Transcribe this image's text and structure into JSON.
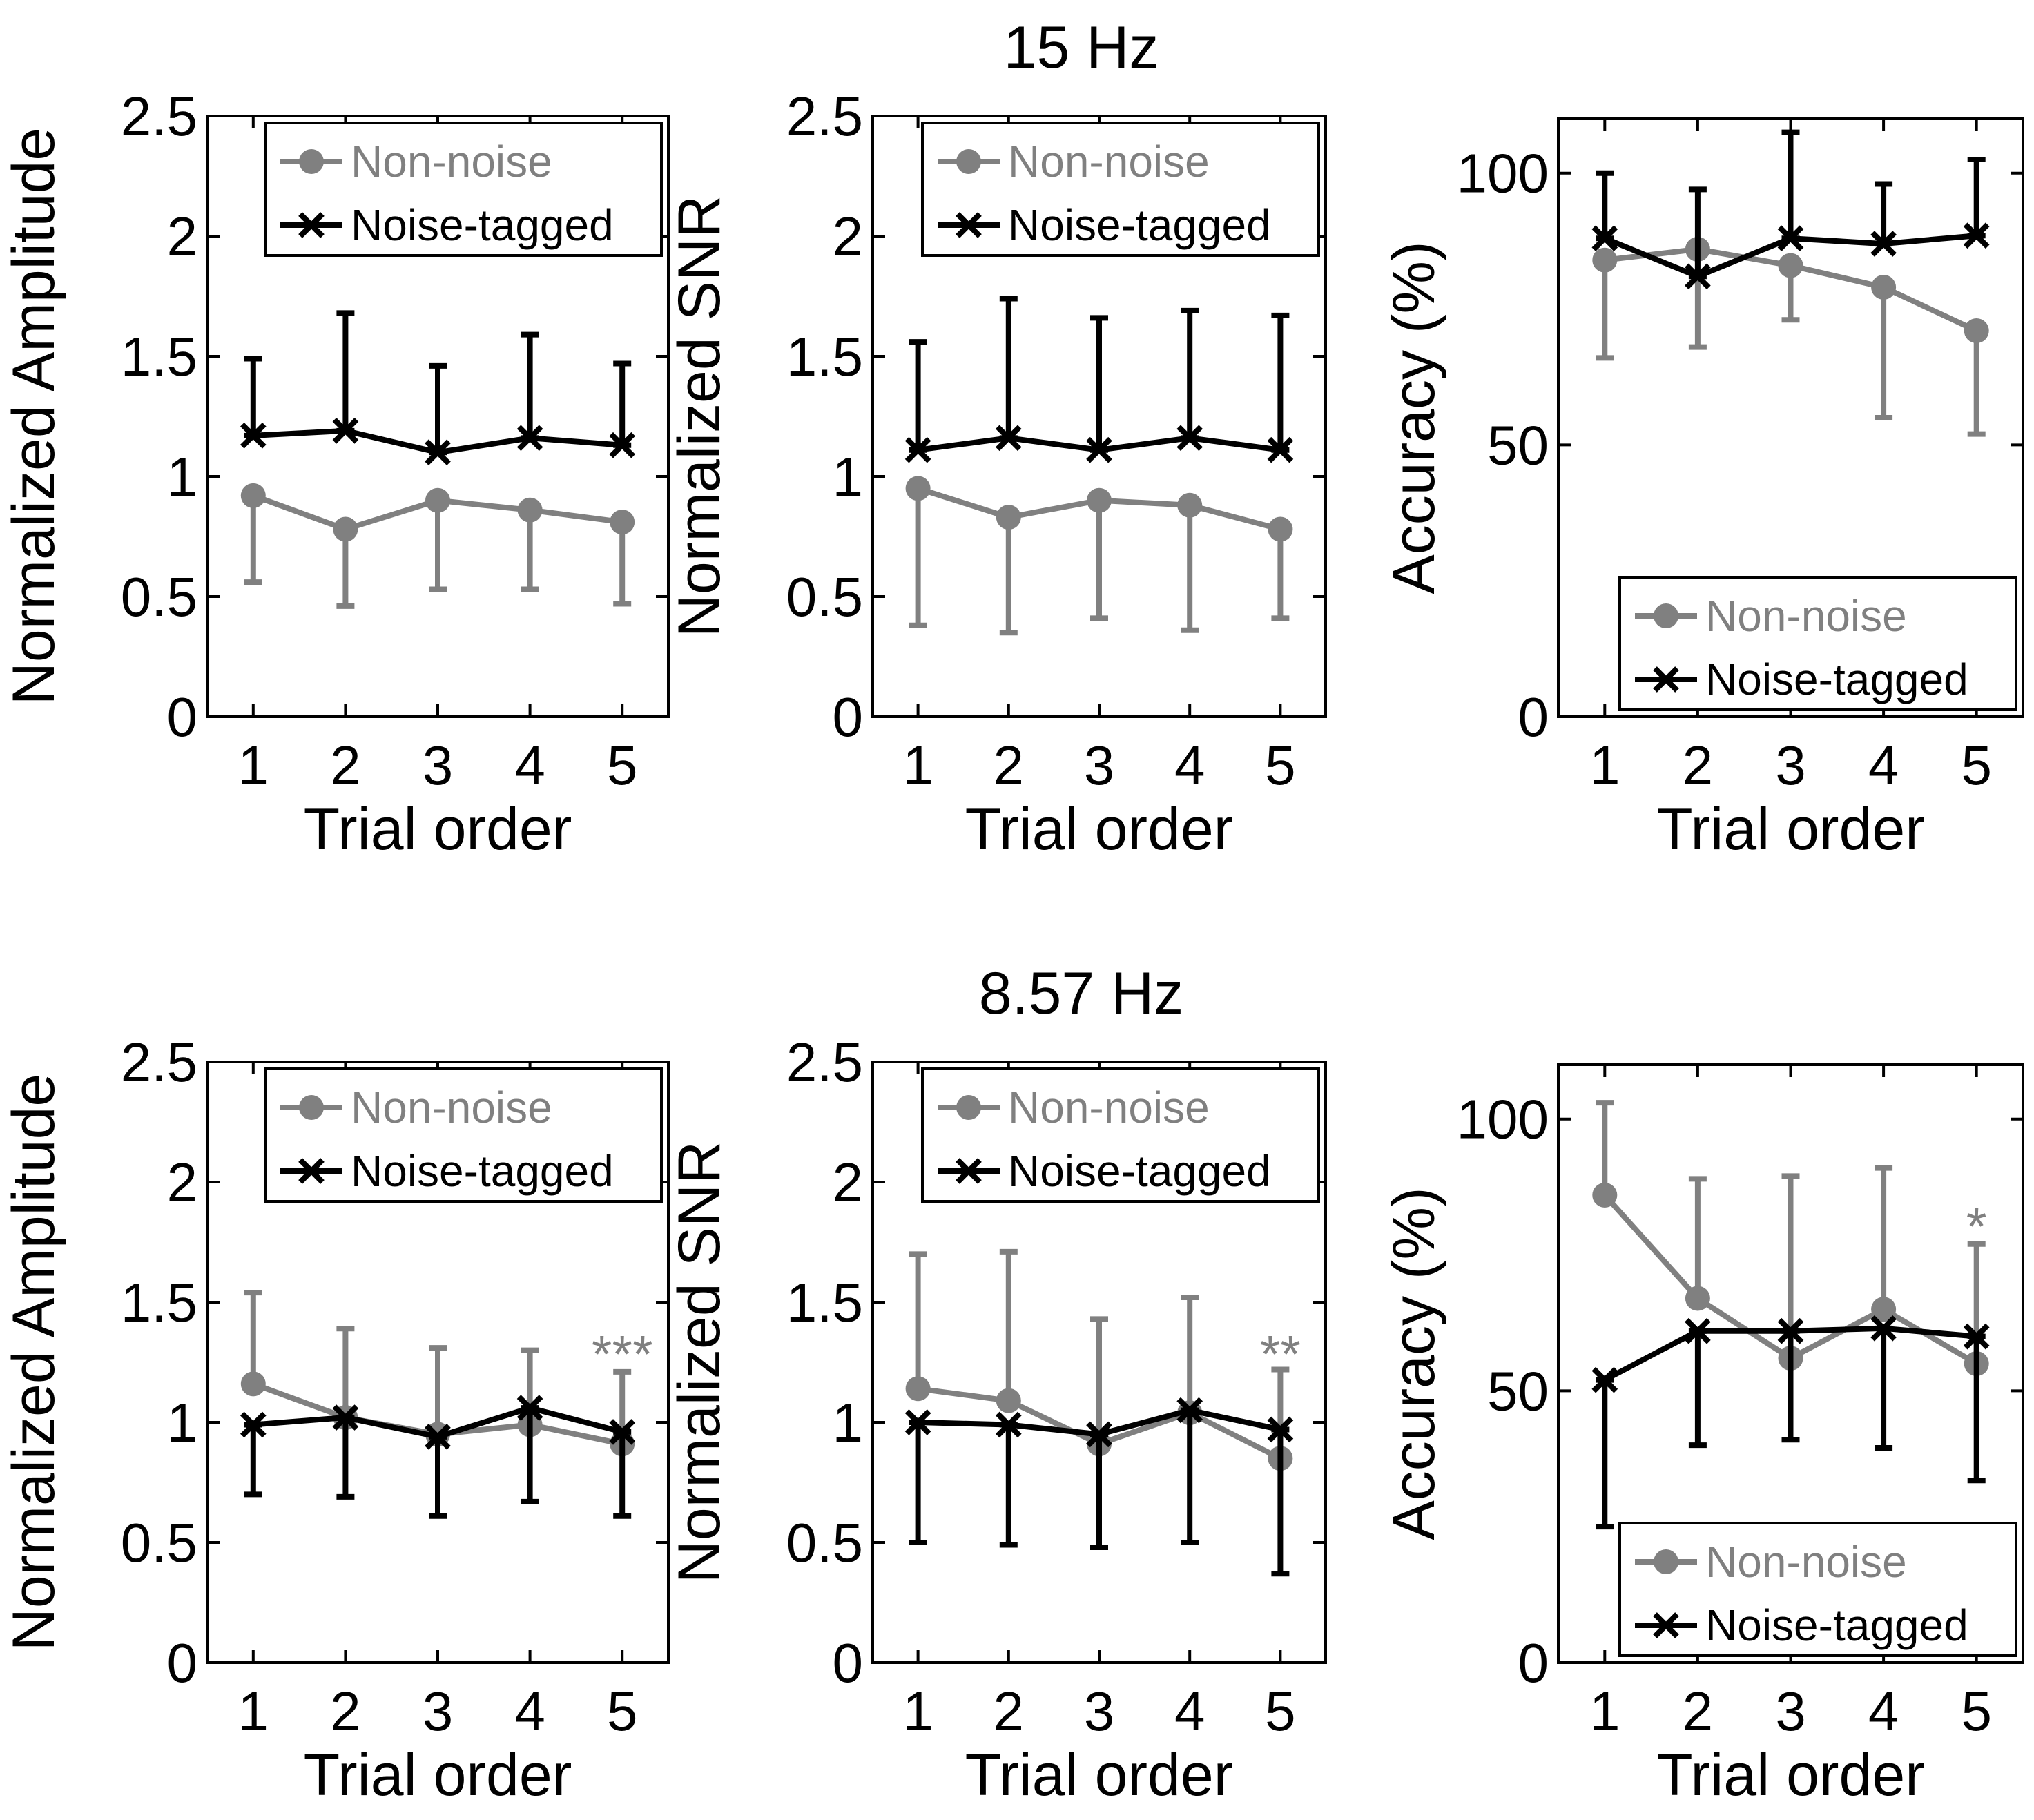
{
  "colors": {
    "non_noise": "#808080",
    "noise_tagged": "#000000",
    "axis": "#000000",
    "background": "#ffffff"
  },
  "row_titles": [
    "15 Hz",
    "8.57 Hz"
  ],
  "chart_data": [
    {
      "type": "line",
      "id": "amp-15",
      "row_title": "15 Hz",
      "xlabel": "Trial order",
      "ylabel": "Normalized Amplitude",
      "x": [
        1,
        2,
        3,
        4,
        5
      ],
      "xlim": [
        0.5,
        5.5
      ],
      "ylim": [
        0,
        2.5
      ],
      "yticks": [
        0,
        0.5,
        1,
        1.5,
        2,
        2.5
      ],
      "ytick_labels": [
        "0",
        "0.5",
        "1",
        "1.5",
        "2",
        "2.5"
      ],
      "legend": "top-right",
      "series": [
        {
          "name": "Non-noise",
          "marker": "circle",
          "color": "#808080",
          "values": [
            0.92,
            0.78,
            0.9,
            0.86,
            0.81
          ],
          "err_low": [
            0.56,
            0.46,
            0.53,
            0.53,
            0.47
          ],
          "err_high": [
            0.92,
            0.78,
            0.9,
            0.86,
            0.81
          ]
        },
        {
          "name": "Noise-tagged",
          "marker": "x",
          "color": "#000000",
          "values": [
            1.17,
            1.19,
            1.1,
            1.16,
            1.13
          ],
          "err_low": [
            1.17,
            1.19,
            1.1,
            1.16,
            1.13
          ],
          "err_high": [
            1.49,
            1.68,
            1.46,
            1.59,
            1.47
          ]
        }
      ],
      "annotations": []
    },
    {
      "type": "line",
      "id": "snr-15",
      "xlabel": "Trial order",
      "ylabel": "Normalized SNR",
      "x": [
        1,
        2,
        3,
        4,
        5
      ],
      "xlim": [
        0.5,
        5.5
      ],
      "ylim": [
        0,
        2.5
      ],
      "yticks": [
        0,
        0.5,
        1,
        1.5,
        2,
        2.5
      ],
      "ytick_labels": [
        "0",
        "0.5",
        "1",
        "1.5",
        "2",
        "2.5"
      ],
      "legend": "top-right",
      "series": [
        {
          "name": "Non-noise",
          "marker": "circle",
          "color": "#808080",
          "values": [
            0.95,
            0.83,
            0.9,
            0.88,
            0.78
          ],
          "err_low": [
            0.38,
            0.35,
            0.41,
            0.36,
            0.41
          ],
          "err_high": [
            0.95,
            0.83,
            0.9,
            0.88,
            0.78
          ]
        },
        {
          "name": "Noise-tagged",
          "marker": "x",
          "color": "#000000",
          "values": [
            1.11,
            1.16,
            1.11,
            1.16,
            1.11
          ],
          "err_low": [
            1.11,
            1.16,
            1.11,
            1.16,
            1.11
          ],
          "err_high": [
            1.56,
            1.74,
            1.66,
            1.69,
            1.67
          ]
        }
      ],
      "annotations": []
    },
    {
      "type": "line",
      "id": "acc-15",
      "xlabel": "Trial order",
      "ylabel": "Accuracy (%)",
      "x": [
        1,
        2,
        3,
        4,
        5
      ],
      "xlim": [
        0.5,
        5.5
      ],
      "ylim": [
        0,
        110
      ],
      "yticks": [
        0,
        50,
        100
      ],
      "ytick_labels": [
        "0",
        "50",
        "100"
      ],
      "legend": "bottom-right",
      "series": [
        {
          "name": "Non-noise",
          "marker": "circle",
          "color": "#808080",
          "values": [
            84,
            86,
            83,
            79,
            71
          ],
          "err_low": [
            66,
            68,
            73,
            55,
            52
          ],
          "err_high": [
            84,
            86,
            83,
            79,
            71
          ]
        },
        {
          "name": "Noise-tagged",
          "marker": "x",
          "color": "#000000",
          "values": [
            88,
            81,
            88,
            87,
            88.5
          ],
          "err_low": [
            88,
            81,
            88,
            87,
            88.5
          ],
          "err_high": [
            100,
            97,
            107.5,
            98,
            102.5
          ]
        }
      ],
      "annotations": []
    },
    {
      "type": "line",
      "id": "amp-857",
      "row_title": "8.57 Hz",
      "xlabel": "Trial order",
      "ylabel": "Normalized Amplitude",
      "x": [
        1,
        2,
        3,
        4,
        5
      ],
      "xlim": [
        0.5,
        5.5
      ],
      "ylim": [
        0,
        2.5
      ],
      "yticks": [
        0,
        0.5,
        1,
        1.5,
        2,
        2.5
      ],
      "ytick_labels": [
        "0",
        "0.5",
        "1",
        "1.5",
        "2",
        "2.5"
      ],
      "legend": "top-right",
      "series": [
        {
          "name": "Non-noise",
          "marker": "circle",
          "color": "#808080",
          "values": [
            1.16,
            1.02,
            0.95,
            0.99,
            0.91
          ],
          "err_low": [
            1.16,
            1.02,
            0.95,
            0.99,
            0.91
          ],
          "err_high": [
            1.54,
            1.39,
            1.31,
            1.3,
            1.21
          ]
        },
        {
          "name": "Noise-tagged",
          "marker": "x",
          "color": "#000000",
          "values": [
            0.99,
            1.02,
            0.94,
            1.06,
            0.96
          ],
          "err_low": [
            0.7,
            0.69,
            0.61,
            0.67,
            0.61
          ],
          "err_high": [
            0.99,
            1.02,
            0.94,
            1.06,
            0.96
          ]
        }
      ],
      "annotations": [
        {
          "text": "***",
          "x": 5,
          "y": 1.3,
          "color": "#808080"
        }
      ]
    },
    {
      "type": "line",
      "id": "snr-857",
      "xlabel": "Trial order",
      "ylabel": "Normalized SNR",
      "x": [
        1,
        2,
        3,
        4,
        5
      ],
      "xlim": [
        0.5,
        5.5
      ],
      "ylim": [
        0,
        2.5
      ],
      "yticks": [
        0,
        0.5,
        1,
        1.5,
        2,
        2.5
      ],
      "ytick_labels": [
        "0",
        "0.5",
        "1",
        "1.5",
        "2",
        "2.5"
      ],
      "legend": "top-right",
      "series": [
        {
          "name": "Non-noise",
          "marker": "circle",
          "color": "#808080",
          "values": [
            1.14,
            1.09,
            0.91,
            1.04,
            0.85
          ],
          "err_low": [
            1.14,
            1.09,
            0.91,
            1.04,
            0.85
          ],
          "err_high": [
            1.7,
            1.71,
            1.43,
            1.52,
            1.22
          ]
        },
        {
          "name": "Noise-tagged",
          "marker": "x",
          "color": "#000000",
          "values": [
            1.0,
            0.99,
            0.95,
            1.05,
            0.97
          ],
          "err_low": [
            0.5,
            0.49,
            0.48,
            0.5,
            0.37
          ],
          "err_high": [
            1.0,
            0.99,
            0.95,
            1.05,
            0.97
          ]
        }
      ],
      "annotations": [
        {
          "text": "**",
          "x": 5,
          "y": 1.3,
          "color": "#808080"
        }
      ]
    },
    {
      "type": "line",
      "id": "acc-857",
      "xlabel": "Trial order",
      "ylabel": "Accuracy (%)",
      "x": [
        1,
        2,
        3,
        4,
        5
      ],
      "xlim": [
        0.5,
        5.5
      ],
      "ylim": [
        0,
        110
      ],
      "yticks": [
        0,
        50,
        100
      ],
      "ytick_labels": [
        "0",
        "50",
        "100"
      ],
      "legend": "bottom-right",
      "series": [
        {
          "name": "Non-noise",
          "marker": "circle",
          "color": "#808080",
          "values": [
            86,
            67,
            56,
            65,
            55
          ],
          "err_low": [
            86,
            67,
            56,
            65,
            55
          ],
          "err_high": [
            103,
            89,
            89.5,
            91,
            77
          ]
        },
        {
          "name": "Noise-tagged",
          "marker": "x",
          "color": "#000000",
          "values": [
            52,
            61,
            61,
            61.5,
            60
          ],
          "err_low": [
            25,
            40,
            41,
            39.5,
            33.5
          ],
          "err_high": [
            52,
            61,
            61,
            61.5,
            60
          ]
        }
      ],
      "annotations": [
        {
          "text": "*",
          "x": 5,
          "y": 81,
          "color": "#808080"
        }
      ]
    }
  ]
}
